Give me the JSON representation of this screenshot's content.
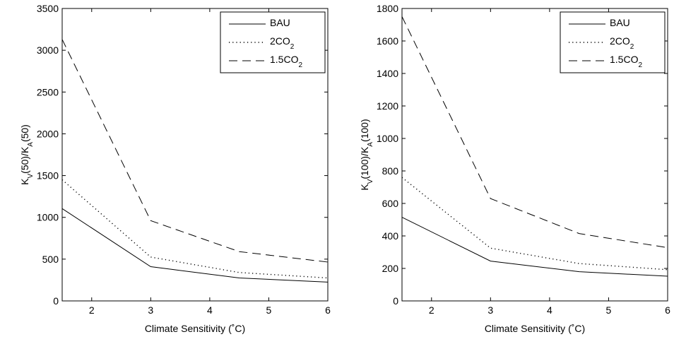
{
  "chart_data": [
    {
      "type": "line",
      "xlabel": "Climate Sensitivity (˚C)",
      "ylabel": {
        "main": "K",
        "sub1": "V",
        "mid": "(50)/K",
        "sub2": "A",
        "end": "(50)"
      },
      "xlim": [
        1.5,
        6
      ],
      "ylim": [
        0,
        3500
      ],
      "xticks": [
        2,
        3,
        4,
        5,
        6
      ],
      "yticks": [
        0,
        500,
        1000,
        1500,
        2000,
        2500,
        3000,
        3500
      ],
      "grid": false,
      "legend_position": "top-right",
      "x": [
        1.5,
        3,
        4.5,
        6
      ],
      "series": [
        {
          "name": "BAU",
          "name_sub": "",
          "style": "solid",
          "values": [
            1105,
            410,
            275,
            225
          ]
        },
        {
          "name": "2CO",
          "name_sub": "2",
          "style": "dotted",
          "values": [
            1450,
            525,
            340,
            275
          ]
        },
        {
          "name": "1.5CO",
          "name_sub": "2",
          "style": "dashed",
          "values": [
            3130,
            960,
            590,
            465
          ]
        }
      ]
    },
    {
      "type": "line",
      "xlabel": "Climate Sensitivity (˚C)",
      "ylabel": {
        "main": "K",
        "sub1": "V",
        "mid": "(100)/K",
        "sub2": "A",
        "end": "(100)"
      },
      "xlim": [
        1.5,
        6
      ],
      "ylim": [
        0,
        1800
      ],
      "xticks": [
        2,
        3,
        4,
        5,
        6
      ],
      "yticks": [
        0,
        200,
        400,
        600,
        800,
        1000,
        1200,
        1400,
        1600,
        1800
      ],
      "grid": false,
      "legend_position": "top-right",
      "x": [
        1.5,
        3,
        4.5,
        6
      ],
      "series": [
        {
          "name": "BAU",
          "name_sub": "",
          "style": "solid",
          "values": [
            515,
            245,
            180,
            152
          ]
        },
        {
          "name": "2CO",
          "name_sub": "2",
          "style": "dotted",
          "values": [
            760,
            325,
            230,
            192
          ]
        },
        {
          "name": "1.5CO",
          "name_sub": "2",
          "style": "dashed",
          "values": [
            1750,
            630,
            415,
            328
          ]
        }
      ]
    }
  ]
}
